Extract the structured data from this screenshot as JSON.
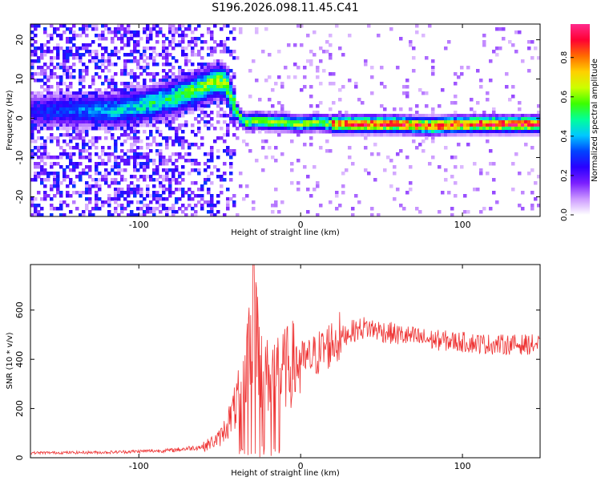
{
  "title": "S196.2026.098.11.45.C41",
  "chart_data": [
    {
      "type": "heatmap",
      "name": "spectrogram",
      "xlabel": "Height of straight line (km)",
      "ylabel": "Frequency (Hz)",
      "xlim": [
        -167,
        148
      ],
      "ylim": [
        -25,
        24
      ],
      "x_ticks": [
        -100,
        0,
        100
      ],
      "y_ticks": [
        -20,
        -10,
        0,
        10,
        20
      ],
      "ridge": {
        "description": "dominant frequency vs height",
        "x": [
          -115,
          -100,
          -90,
          -80,
          -70,
          -60,
          -52,
          -46,
          -42,
          -38,
          -34,
          -28,
          -20,
          -10,
          0,
          10,
          20,
          40,
          60,
          80,
          100,
          120,
          148
        ],
        "y": [
          2,
          3,
          4,
          5,
          6.5,
          8,
          9.5,
          9,
          4,
          0.5,
          -1,
          -0.5,
          -1,
          -1,
          -1.5,
          -1,
          -1.5,
          -1.5,
          -1.5,
          -2,
          -1.5,
          -1.5,
          -1.5
        ]
      },
      "colorbar": {
        "label": "Normalized spectral amplitude",
        "range": [
          0.0,
          0.97
        ],
        "ticks": [
          0.0,
          0.2,
          0.4,
          0.6,
          0.8
        ],
        "tick_labels": [
          "0.0",
          "0.2",
          "0.4",
          "0.6",
          "0.8"
        ],
        "colormap": [
          "#ffffff",
          "#cc99ff",
          "#7a1fff",
          "#2a00ff",
          "#0044ff",
          "#00c8ff",
          "#00ff9a",
          "#3cff00",
          "#ccff00",
          "#ffd000",
          "#ff6a00",
          "#ff0033",
          "#ff2a8c"
        ]
      }
    },
    {
      "type": "line",
      "name": "snr",
      "xlabel": "Height of straight line (km)",
      "ylabel": "SNR (10 * v/v)",
      "xlim": [
        -167,
        148
      ],
      "ylim": [
        0,
        785
      ],
      "x_ticks": [
        -100,
        0,
        100
      ],
      "y_ticks": [
        0,
        200,
        400,
        600
      ],
      "color": "#ee3333",
      "envelope": {
        "x": [
          -167,
          -120,
          -80,
          -60,
          -50,
          -45,
          -40,
          -35,
          -30,
          -29,
          -25,
          -20,
          -15,
          -10,
          -5,
          0,
          5,
          10,
          20,
          30,
          40,
          60,
          80,
          100,
          120,
          148
        ],
        "y": [
          20,
          22,
          30,
          45,
          80,
          140,
          210,
          320,
          480,
          785,
          360,
          330,
          350,
          360,
          380,
          390,
          400,
          420,
          470,
          510,
          530,
          500,
          480,
          470,
          460,
          460
        ]
      }
    }
  ]
}
